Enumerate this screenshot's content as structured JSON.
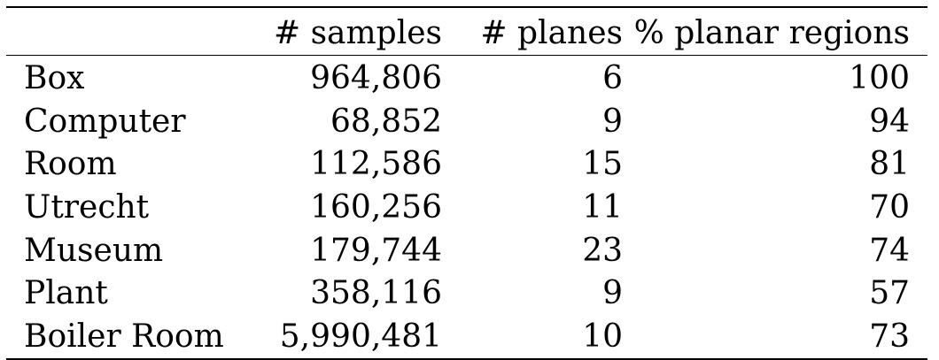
{
  "table": {
    "headers": [
      "",
      "# samples",
      "# planes",
      "% planar regions"
    ],
    "rows": [
      {
        "name": "Box",
        "samples": "964,806",
        "planes": "6",
        "planar": "100"
      },
      {
        "name": "Computer",
        "samples": "68,852",
        "planes": "9",
        "planar": "94"
      },
      {
        "name": "Room",
        "samples": "112,586",
        "planes": "15",
        "planar": "81"
      },
      {
        "name": "Utrecht",
        "samples": "160,256",
        "planes": "11",
        "planar": "70"
      },
      {
        "name": "Museum",
        "samples": "179,744",
        "planes": "23",
        "planar": "74"
      },
      {
        "name": "Plant",
        "samples": "358,116",
        "planes": "9",
        "planar": "57"
      },
      {
        "name": "Boiler Room",
        "samples": "5,990,481",
        "planes": "10",
        "planar": "73"
      }
    ]
  }
}
